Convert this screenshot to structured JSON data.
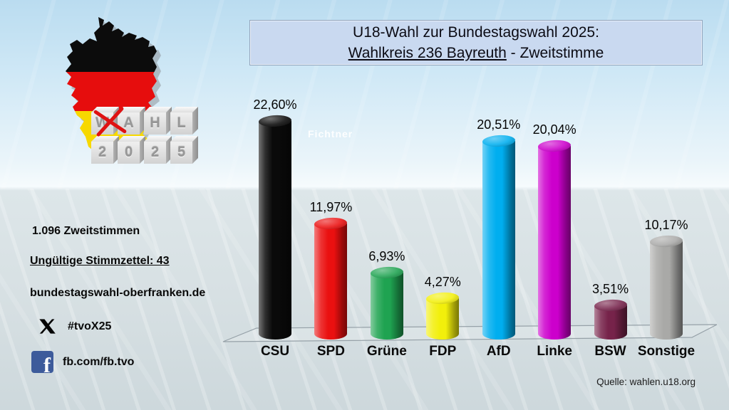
{
  "title": {
    "line1": "U18-Wahl zur Bundestagswahl 2025:",
    "line2_underlined": "Wahlkreis 236 Bayreuth",
    "line2_rest": " - Zweitstimme"
  },
  "logo_blocks": {
    "row1": [
      "W",
      "A",
      "H",
      "L"
    ],
    "row2": [
      "2",
      "0",
      "2",
      "5"
    ]
  },
  "sidebar": {
    "total_votes": "1.096 Zweitstimmen",
    "invalid_ballots": "Ungültige Stimmzettel: 43",
    "website": "bundestagswahl-oberfranken.de",
    "x_hashtag": "#tvoX25",
    "facebook_handle": "fb.com/fb.tvo",
    "facebook_letter": "f"
  },
  "watermark": "Fichtner",
  "source": "Quelle: wahlen.u18.org",
  "chart_data": {
    "type": "bar",
    "bar_style": "3d-cylinder",
    "title": "U18-Wahl zur Bundestagswahl 2025: Wahlkreis 236 Bayreuth - Zweitstimme",
    "categories": [
      "CSU",
      "SPD",
      "Grüne",
      "FDP",
      "AfD",
      "Linke",
      "BSW",
      "Sonstige"
    ],
    "values": [
      22.6,
      11.97,
      6.93,
      4.27,
      20.51,
      20.04,
      3.51,
      10.17
    ],
    "value_labels": [
      "22,60%",
      "11,97%",
      "6,93%",
      "4,27%",
      "20,51%",
      "20,04%",
      "3,51%",
      "10,17%"
    ],
    "colors": [
      "#0a0a0a",
      "#ea1010",
      "#1fa351",
      "#f2ef0b",
      "#00aeef",
      "#cc00cc",
      "#76234a",
      "#a9a9a7"
    ],
    "unit": "%",
    "ylim": [
      0,
      25
    ],
    "grid": false,
    "legend": false
  }
}
